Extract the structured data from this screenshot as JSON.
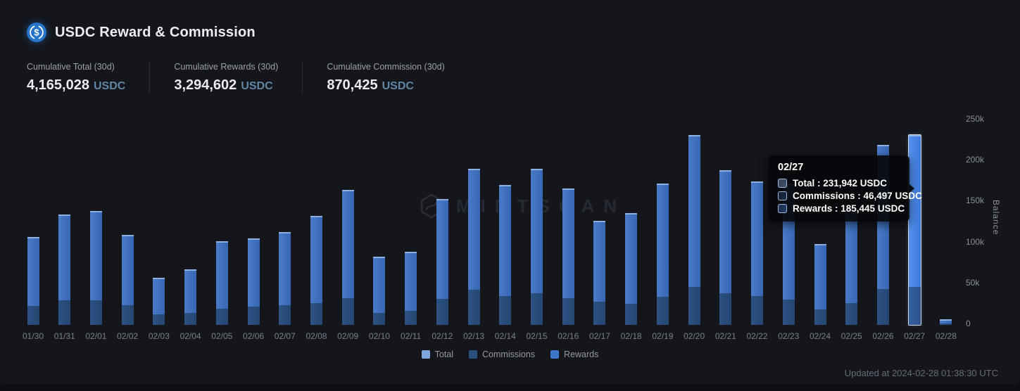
{
  "header": {
    "title": "USDC Reward & Commission"
  },
  "stats": [
    {
      "label": "Cumulative Total (30d)",
      "value": "4,165,028",
      "unit": "USDC"
    },
    {
      "label": "Cumulative Rewards (30d)",
      "value": "3,294,602",
      "unit": "USDC"
    },
    {
      "label": "Cumulative Commission (30d)",
      "value": "870,425",
      "unit": "USDC"
    }
  ],
  "chart_data": {
    "type": "bar",
    "title": "USDC Reward & Commission",
    "ylabel": "Balance",
    "ylim": [
      0,
      250000
    ],
    "yticks": [
      "0",
      "50k",
      "100k",
      "150k",
      "200k",
      "250k"
    ],
    "grid": false,
    "legend_position": "bottom",
    "categories": [
      "01/30",
      "01/31",
      "02/01",
      "02/02",
      "02/03",
      "02/04",
      "02/05",
      "02/06",
      "02/07",
      "02/08",
      "02/09",
      "02/10",
      "02/11",
      "02/12",
      "02/13",
      "02/14",
      "02/15",
      "02/16",
      "02/17",
      "02/18",
      "02/19",
      "02/20",
      "02/21",
      "02/22",
      "02/23",
      "02/24",
      "02/25",
      "02/26",
      "02/27",
      "02/28"
    ],
    "series": [
      {
        "name": "Total",
        "color": "#7ea7dd",
        "values": [
          107000,
          135000,
          139000,
          110000,
          58000,
          68000,
          102000,
          106000,
          113000,
          133000,
          165000,
          83000,
          89000,
          154000,
          191000,
          171000,
          191000,
          167000,
          127000,
          137000,
          173000,
          232000,
          189000,
          175000,
          173000,
          99000,
          138000,
          220000,
          231942,
          7000
        ]
      },
      {
        "name": "Commissions",
        "color": "#2b4e7e",
        "values": [
          23000,
          30000,
          30000,
          24000,
          13000,
          14500,
          20000,
          22000,
          24000,
          27000,
          33000,
          15000,
          17000,
          32000,
          43000,
          35000,
          39000,
          33000,
          28000,
          26000,
          34000,
          46000,
          39000,
          35000,
          31000,
          19000,
          27000,
          44000,
          46497,
          1500
        ]
      },
      {
        "name": "Rewards",
        "color": "#4077c9",
        "values": [
          84000,
          105000,
          109000,
          86000,
          45000,
          53500,
          82000,
          84000,
          89000,
          106000,
          132000,
          68000,
          72000,
          122000,
          148000,
          136000,
          152000,
          134000,
          99000,
          111000,
          139000,
          186000,
          150000,
          140000,
          142000,
          80000,
          111000,
          176000,
          185445,
          5500
        ]
      }
    ],
    "highlighted_category": "02/27",
    "watermark": "MINTSCAN"
  },
  "tooltip": {
    "title": "02/27",
    "rows": [
      {
        "series": "Total",
        "label": "Total",
        "value": "231,942 USDC"
      },
      {
        "series": "Commissions",
        "label": "Commissions",
        "value": "46,497 USDC"
      },
      {
        "series": "Rewards",
        "label": "Rewards",
        "value": "185,445 USDC"
      }
    ]
  },
  "footer": {
    "updated": "Updated at 2024-02-28 01:38:30 UTC"
  }
}
